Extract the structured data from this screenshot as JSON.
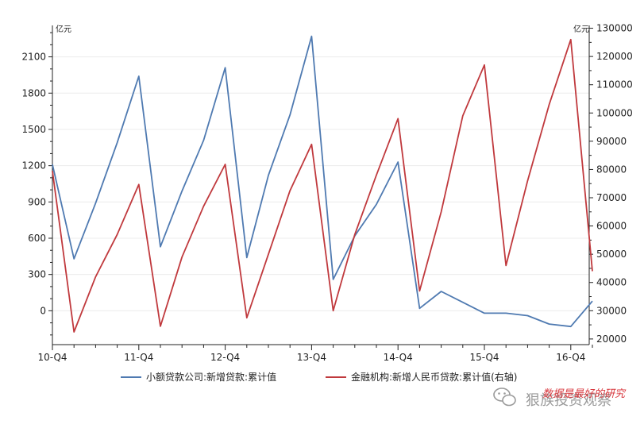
{
  "chart_data": {
    "type": "line",
    "left_axis_unit": "亿元",
    "right_axis_unit": "亿元",
    "x_tick_labels": [
      "10-Q4",
      "11-Q4",
      "12-Q4",
      "13-Q4",
      "14-Q4",
      "15-Q4",
      "16-Q4"
    ],
    "x": [
      "10-Q4",
      "11-Q1",
      "11-Q2",
      "11-Q3",
      "11-Q4",
      "12-Q1",
      "12-Q2",
      "12-Q3",
      "12-Q4",
      "13-Q1",
      "13-Q2",
      "13-Q3",
      "13-Q4",
      "14-Q1",
      "14-Q2",
      "14-Q3",
      "14-Q4",
      "15-Q1",
      "15-Q2",
      "15-Q3",
      "15-Q4",
      "16-Q1",
      "16-Q2",
      "16-Q3",
      "16-Q4",
      "17-Q1"
    ],
    "y_left_ticks": [
      0,
      300,
      600,
      900,
      1200,
      1500,
      1800,
      2100
    ],
    "y_left_lim": [
      -280,
      2360
    ],
    "y_right_ticks": [
      20000,
      30000,
      40000,
      50000,
      60000,
      70000,
      80000,
      90000,
      100000,
      110000,
      120000,
      130000
    ],
    "y_right_lim": [
      18000,
      131000
    ],
    "series": [
      {
        "name": "小额贷款公司:新增贷款:累计值",
        "axis": "left",
        "color": "#4f7ab1",
        "values": [
          1210,
          430,
          890,
          1390,
          1940,
          530,
          990,
          1410,
          2010,
          440,
          1120,
          1620,
          2270,
          260,
          620,
          880,
          1230,
          20,
          160,
          70,
          -20,
          -20,
          -40,
          -110,
          -130,
          80
        ]
      },
      {
        "name": "金融机构:新增人民币贷款:累计值(右轴)",
        "axis": "right",
        "color": "#c0393d",
        "values": [
          79500,
          22500,
          42000,
          57000,
          74700,
          24500,
          49000,
          67000,
          81800,
          27500,
          50000,
          72500,
          88900,
          30000,
          57000,
          78000,
          98000,
          37000,
          65000,
          99000,
          117000,
          46000,
          76000,
          103000,
          126000,
          44000
        ]
      }
    ]
  },
  "watermark": {
    "text": "狠族投资观察",
    "overlay": "数据是最好的研究"
  }
}
